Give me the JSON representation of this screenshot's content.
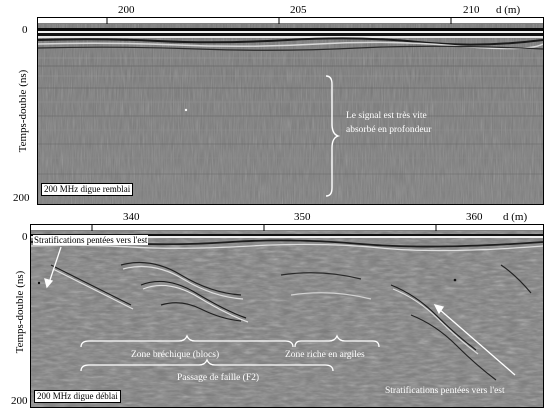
{
  "figure": {
    "panels": [
      {
        "id": "top",
        "x_ticks": [
          "200",
          "205",
          "210"
        ],
        "x_unit": "d (m)",
        "y_ticks": [
          "0",
          "200"
        ],
        "y_label": "Temps-double (ns)",
        "caption": "200 MHz digue remblai",
        "annotations": {
          "signal_line1": "Le signal est très vite",
          "signal_line2": "absorbé en profondeur"
        }
      },
      {
        "id": "bottom",
        "x_ticks": [
          "340",
          "350",
          "360"
        ],
        "x_unit": "d (m)",
        "y_ticks": [
          "0",
          "200"
        ],
        "y_label": "Temps-double (ns)",
        "caption": "200 MHz digue déblai",
        "annotations": {
          "strat_left": "Stratifications pentées vers l'est",
          "zone_breche": "Zone bréchique (blocs)",
          "zone_argiles": "Zone riche en argiles",
          "passage_faille": "Passage de faille (F2)",
          "strat_right": "Stratifications pentées vers l'est"
        }
      }
    ]
  }
}
